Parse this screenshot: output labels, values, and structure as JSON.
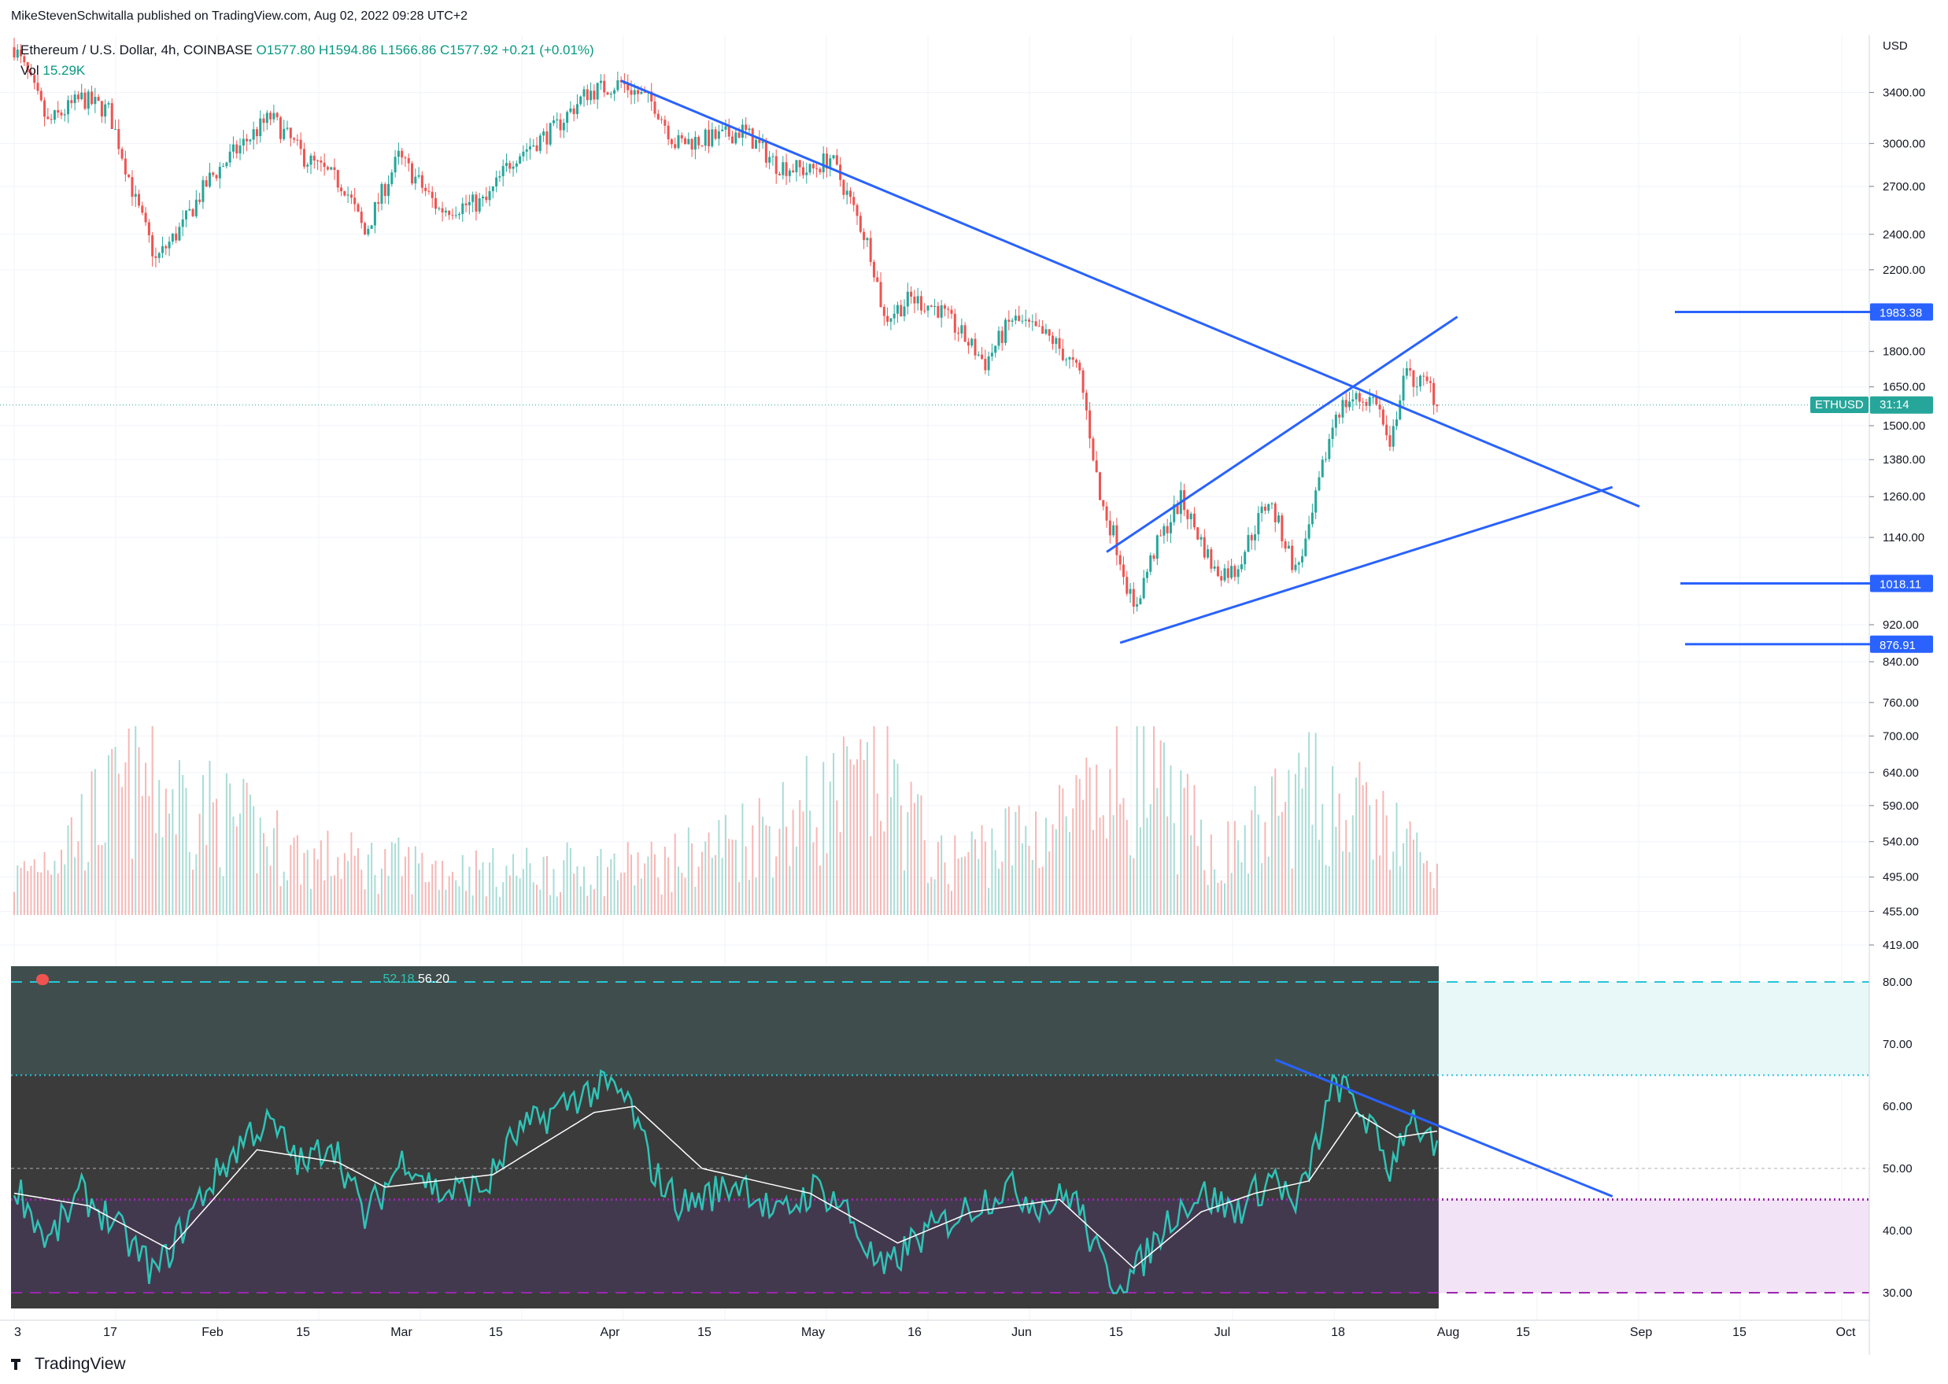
{
  "header": {
    "publisher": "MikeStevenSchwitalla published on TradingView.com, Aug 02, 2022 09:28 UTC+2",
    "symbol_line": "Ethereum / U.S. Dollar, 4h, COINBASE",
    "open": "O1577.80",
    "high": "H1594.86",
    "low": "L1566.86",
    "close": "C1577.92",
    "change": "+0.21 (+0.01%)",
    "vol_label": "Vol",
    "vol_value": "15.29K"
  },
  "price_axis": {
    "currency": "USD",
    "ticks": [
      "3400.00",
      "3000.00",
      "2700.00",
      "2400.00",
      "2200.00",
      "1800.00",
      "1650.00",
      "1500.00",
      "1380.00",
      "1260.00",
      "1140.00",
      "920.00",
      "840.00",
      "760.00",
      "700.00",
      "640.00",
      "590.00",
      "540.00",
      "495.00",
      "455.00",
      "419.00"
    ]
  },
  "levels": [
    {
      "label": "1983.38",
      "value": 1983.38
    },
    {
      "label": "1018.11",
      "value": 1018.11
    },
    {
      "label": "876.91",
      "value": 876.91
    }
  ],
  "current": {
    "symbol": "ETHUSD",
    "countdown": "31:14",
    "price": 1577.92
  },
  "rsi": {
    "values_label_1": "52.18",
    "values_label_2": "56.20",
    "axis_ticks": [
      "80.00",
      "70.00",
      "60.00",
      "50.00",
      "40.00",
      "30.00"
    ]
  },
  "time_axis": {
    "ticks": [
      "3",
      "17",
      "Feb",
      "15",
      "Mar",
      "15",
      "Apr",
      "15",
      "May",
      "16",
      "Jun",
      "15",
      "Jul",
      "18",
      "Aug",
      "15",
      "Sep",
      "15",
      "Oct"
    ]
  },
  "footer": {
    "brand": "TradingView"
  },
  "colors": {
    "up": "#26a69a",
    "down": "#ef5350",
    "trendline": "#2962ff",
    "rsi": "#2ec4b6",
    "rsi_ma": "#ffffff",
    "rsi_bg": "#3b3b3b",
    "overbought": "#26c6da",
    "oversold": "#9c27b0"
  },
  "chart_data": {
    "type": "candlestick",
    "symbol": "Ethereum / U.S. Dollar",
    "interval": "4h",
    "exchange": "COINBASE",
    "ylabel": "USD",
    "y_scale": "log",
    "ylim": [
      400,
      3800
    ],
    "x_range": [
      "2022-01-03",
      "2022-10-01"
    ],
    "price_path": [
      [
        "2022-01-03",
        3800
      ],
      [
        "2022-01-08",
        3150
      ],
      [
        "2022-01-13",
        3350
      ],
      [
        "2022-01-17",
        3250
      ],
      [
        "2022-01-21",
        2600
      ],
      [
        "2022-01-24",
        2250
      ],
      [
        "2022-01-28",
        2450
      ],
      [
        "2022-02-01",
        2750
      ],
      [
        "2022-02-07",
        3050
      ],
      [
        "2022-02-10",
        3200
      ],
      [
        "2022-02-15",
        2900
      ],
      [
        "2022-02-21",
        2700
      ],
      [
        "2022-02-24",
        2400
      ],
      [
        "2022-03-01",
        2900
      ],
      [
        "2022-03-07",
        2550
      ],
      [
        "2022-03-14",
        2600
      ],
      [
        "2022-03-18",
        2900
      ],
      [
        "2022-03-24",
        3100
      ],
      [
        "2022-03-29",
        3400
      ],
      [
        "2022-04-03",
        3480
      ],
      [
        "2022-04-08",
        3300
      ],
      [
        "2022-04-11",
        3000
      ],
      [
        "2022-04-18",
        3050
      ],
      [
        "2022-04-21",
        3100
      ],
      [
        "2022-04-26",
        2850
      ],
      [
        "2022-05-01",
        2800
      ],
      [
        "2022-05-04",
        2900
      ],
      [
        "2022-05-07",
        2600
      ],
      [
        "2022-05-10",
        2300
      ],
      [
        "2022-05-12",
        1950
      ],
      [
        "2022-05-16",
        2050
      ],
      [
        "2022-05-20",
        2000
      ],
      [
        "2022-05-27",
        1750
      ],
      [
        "2022-05-31",
        1950
      ],
      [
        "2022-06-06",
        1850
      ],
      [
        "2022-06-10",
        1700
      ],
      [
        "2022-06-13",
        1250
      ],
      [
        "2022-06-15",
        1150
      ],
      [
        "2022-06-18",
        950
      ],
      [
        "2022-06-21",
        1100
      ],
      [
        "2022-06-25",
        1250
      ],
      [
        "2022-06-30",
        1050
      ],
      [
        "2022-07-03",
        1050
      ],
      [
        "2022-07-08",
        1250
      ],
      [
        "2022-07-12",
        1050
      ],
      [
        "2022-07-14",
        1150
      ],
      [
        "2022-07-18",
        1550
      ],
      [
        "2022-07-20",
        1600
      ],
      [
        "2022-07-24",
        1600
      ],
      [
        "2022-07-26",
        1400
      ],
      [
        "2022-07-28",
        1700
      ],
      [
        "2022-08-01",
        1650
      ],
      [
        "2022-08-02",
        1577.92
      ]
    ],
    "volume_path": [
      [
        "2022-01-03",
        0.25
      ],
      [
        "2022-01-22",
        0.95
      ],
      [
        "2022-02-15",
        0.4
      ],
      [
        "2022-03-15",
        0.3
      ],
      [
        "2022-04-10",
        0.35
      ],
      [
        "2022-05-10",
        0.9
      ],
      [
        "2022-05-12",
        1.0
      ],
      [
        "2022-05-20",
        0.35
      ],
      [
        "2022-06-13",
        0.75
      ],
      [
        "2022-06-18",
        1.0
      ],
      [
        "2022-07-01",
        0.4
      ],
      [
        "2022-07-13",
        0.85
      ],
      [
        "2022-07-26",
        0.6
      ],
      [
        "2022-08-02",
        0.25
      ]
    ],
    "rsi_path": [
      [
        "2022-01-03",
        48
      ],
      [
        "2022-01-08",
        38
      ],
      [
        "2022-01-13",
        46
      ],
      [
        "2022-01-17",
        42
      ],
      [
        "2022-01-24",
        33
      ],
      [
        "2022-01-31",
        46
      ],
      [
        "2022-02-07",
        56
      ],
      [
        "2022-02-10",
        57
      ],
      [
        "2022-02-15",
        50
      ],
      [
        "2022-02-19",
        55
      ],
      [
        "2022-02-24",
        42
      ],
      [
        "2022-03-02",
        52
      ],
      [
        "2022-03-07",
        46
      ],
      [
        "2022-03-14",
        47
      ],
      [
        "2022-03-18",
        55
      ],
      [
        "2022-03-28",
        62
      ],
      [
        "2022-04-01",
        63
      ],
      [
        "2022-04-04",
        61
      ],
      [
        "2022-04-08",
        49
      ],
      [
        "2022-04-12",
        44
      ],
      [
        "2022-04-21",
        48
      ],
      [
        "2022-04-26",
        42
      ],
      [
        "2022-05-02",
        47
      ],
      [
        "2022-05-06",
        44
      ],
      [
        "2022-05-10",
        36
      ],
      [
        "2022-05-12",
        33
      ],
      [
        "2022-05-16",
        38
      ],
      [
        "2022-05-22",
        42
      ],
      [
        "2022-05-30",
        47
      ],
      [
        "2022-06-05",
        44
      ],
      [
        "2022-06-09",
        46
      ],
      [
        "2022-06-13",
        35
      ],
      [
        "2022-06-15",
        32
      ],
      [
        "2022-06-18",
        33
      ],
      [
        "2022-06-24",
        43
      ],
      [
        "2022-06-28",
        46
      ],
      [
        "2022-07-03",
        43
      ],
      [
        "2022-07-09",
        49
      ],
      [
        "2022-07-12",
        43
      ],
      [
        "2022-07-16",
        57
      ],
      [
        "2022-07-18",
        64
      ],
      [
        "2022-07-22",
        59
      ],
      [
        "2022-07-26",
        50
      ],
      [
        "2022-07-29",
        59
      ],
      [
        "2022-08-02",
        52
      ]
    ],
    "rsi_ma_path": [
      [
        "2022-01-03",
        46
      ],
      [
        "2022-01-14",
        44
      ],
      [
        "2022-01-26",
        37
      ],
      [
        "2022-02-08",
        53
      ],
      [
        "2022-02-20",
        51
      ],
      [
        "2022-02-27",
        47
      ],
      [
        "2022-03-15",
        49
      ],
      [
        "2022-03-30",
        59
      ],
      [
        "2022-04-05",
        60
      ],
      [
        "2022-04-15",
        50
      ],
      [
        "2022-05-01",
        46
      ],
      [
        "2022-05-14",
        38
      ],
      [
        "2022-05-25",
        43
      ],
      [
        "2022-06-07",
        45
      ],
      [
        "2022-06-18",
        34
      ],
      [
        "2022-06-28",
        43
      ],
      [
        "2022-07-06",
        46
      ],
      [
        "2022-07-14",
        48
      ],
      [
        "2022-07-21",
        59
      ],
      [
        "2022-07-27",
        55
      ],
      [
        "2022-08-02",
        56
      ]
    ],
    "trendlines": [
      {
        "pane": "price",
        "from": [
          "2022-04-03",
          3500
        ],
        "to": [
          "2022-09-01",
          1230
        ]
      },
      {
        "pane": "price",
        "from": [
          "2022-06-14",
          1100
        ],
        "to": [
          "2022-08-05",
          1960
        ]
      },
      {
        "pane": "price",
        "from": [
          "2022-06-16",
          880
        ],
        "to": [
          "2022-08-28",
          1290
        ]
      },
      {
        "pane": "rsi",
        "from": [
          "2022-07-09",
          67.5
        ],
        "to": [
          "2022-08-28",
          45.5
        ]
      }
    ],
    "horizontal_levels": [
      1983.38,
      1018.11,
      876.91
    ],
    "rsi_levels": {
      "overbought": 80,
      "upper": 65,
      "mid": 50,
      "lower": 45,
      "oversold": 30
    }
  }
}
